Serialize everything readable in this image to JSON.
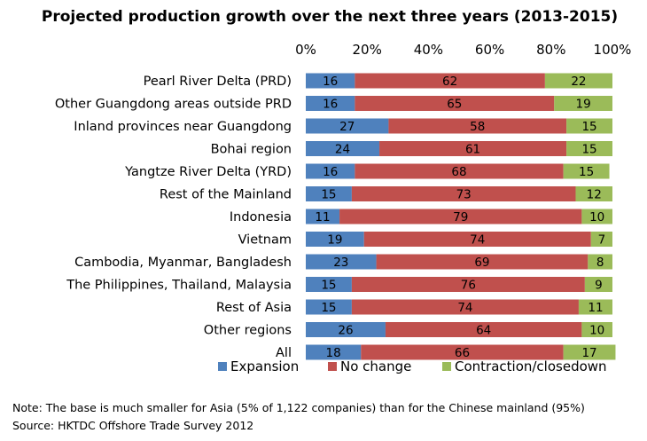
{
  "chart_data": {
    "type": "bar",
    "orientation": "horizontal",
    "stacked": true,
    "percent_stacked": true,
    "title": "Projected production growth over the next three years (2013-2015)",
    "xlim": [
      0,
      100
    ],
    "x_ticks": [
      "0%",
      "20%",
      "40%",
      "60%",
      "80%",
      "100%"
    ],
    "x_tick_values": [
      0,
      20,
      40,
      60,
      80,
      100
    ],
    "x_axis_position": "top",
    "grid": false,
    "legend_position": "bottom",
    "categories": [
      "Pearl River Delta (PRD)",
      "Other Guangdong areas outside PRD",
      "Inland provinces near Guangdong",
      "Bohai region",
      "Yangtze River Delta (YRD)",
      "Rest of the Mainland",
      "Indonesia",
      "Vietnam",
      "Cambodia, Myanmar, Bangladesh",
      "The Philippines, Thailand, Malaysia",
      "Rest of Asia",
      "Other regions",
      "All"
    ],
    "series": [
      {
        "name": "Expansion",
        "color": "#4f81bd",
        "values": [
          16,
          16,
          27,
          24,
          16,
          15,
          11,
          19,
          23,
          15,
          15,
          26,
          18
        ]
      },
      {
        "name": "No change",
        "color": "#c0504d",
        "values": [
          62,
          65,
          58,
          61,
          68,
          73,
          79,
          74,
          69,
          76,
          74,
          64,
          66
        ]
      },
      {
        "name": "Contraction/closedown",
        "color": "#9bbb59",
        "values": [
          22,
          19,
          15,
          15,
          15,
          12,
          10,
          7,
          8,
          9,
          11,
          10,
          17
        ]
      }
    ]
  },
  "notes": {
    "note": "Note: The base is much smaller for Asia (5% of 1,122 companies) than for the Chinese mainland (95%)",
    "source": "Source: HKTDC Offshore Trade Survey 2012"
  }
}
